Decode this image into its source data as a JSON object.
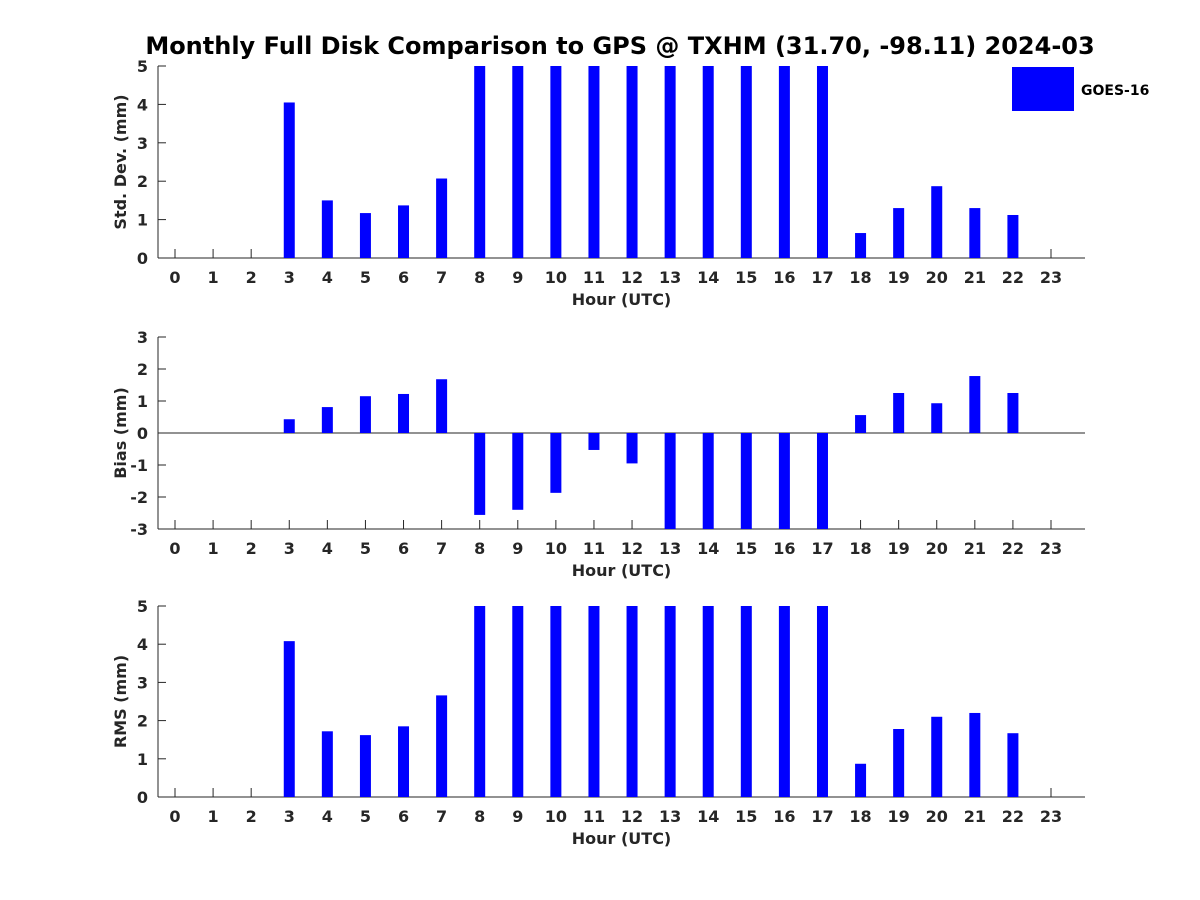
{
  "chart_data": {
    "type": "bar",
    "title": "Monthly Full Disk Comparison to GPS @ TXHM (31.70, -98.11) 2024-03",
    "legend": {
      "entries": [
        "GOES-16"
      ],
      "placement": "top-right",
      "color": "#0000ff"
    },
    "bar_color": "#0000ff",
    "panels": [
      {
        "id": "stddev",
        "ylabel": "Std. Dev. (mm)",
        "xlabel": "Hour (UTC)",
        "ylim": [
          0,
          5
        ],
        "yticks": [
          "0",
          "1",
          "2",
          "3",
          "4",
          "5"
        ],
        "categories": [
          "0",
          "1",
          "2",
          "3",
          "4",
          "5",
          "6",
          "7",
          "8",
          "9",
          "10",
          "11",
          "12",
          "13",
          "14",
          "15",
          "16",
          "17",
          "18",
          "19",
          "20",
          "21",
          "22",
          "23"
        ],
        "series": [
          {
            "name": "GOES-16",
            "values": [
              null,
              null,
              null,
              4.05,
              1.5,
              1.17,
              1.37,
              2.07,
              5,
              5,
              5,
              5,
              5,
              5,
              5,
              5,
              5,
              5,
              0.65,
              1.3,
              1.87,
              1.3,
              1.12,
              null
            ]
          }
        ]
      },
      {
        "id": "bias",
        "ylabel": "Bias (mm)",
        "xlabel": "Hour (UTC)",
        "ylim": [
          -3,
          3
        ],
        "yticks": [
          "-3",
          "-2",
          "-1",
          "0",
          "1",
          "2",
          "3"
        ],
        "zero_line": true,
        "categories": [
          "0",
          "1",
          "2",
          "3",
          "4",
          "5",
          "6",
          "7",
          "8",
          "9",
          "10",
          "11",
          "12",
          "13",
          "14",
          "15",
          "16",
          "17",
          "18",
          "19",
          "20",
          "21",
          "22",
          "23"
        ],
        "series": [
          {
            "name": "GOES-16",
            "values": [
              null,
              null,
              null,
              0.43,
              0.81,
              1.15,
              1.22,
              1.68,
              -2.56,
              -2.4,
              -1.87,
              -0.53,
              -0.95,
              -3,
              -3,
              -3,
              -3,
              -3,
              0.56,
              1.25,
              0.93,
              1.78,
              1.25,
              null
            ]
          }
        ]
      },
      {
        "id": "rms",
        "ylabel": "RMS (mm)",
        "xlabel": "Hour (UTC)",
        "ylim": [
          0,
          5
        ],
        "yticks": [
          "0",
          "1",
          "2",
          "3",
          "4",
          "5"
        ],
        "categories": [
          "0",
          "1",
          "2",
          "3",
          "4",
          "5",
          "6",
          "7",
          "8",
          "9",
          "10",
          "11",
          "12",
          "13",
          "14",
          "15",
          "16",
          "17",
          "18",
          "19",
          "20",
          "21",
          "22",
          "23"
        ],
        "series": [
          {
            "name": "GOES-16",
            "values": [
              null,
              null,
              null,
              4.08,
              1.72,
              1.62,
              1.85,
              2.66,
              5,
              5,
              5,
              5,
              5,
              5,
              5,
              5,
              5,
              5,
              0.87,
              1.78,
              2.1,
              2.2,
              1.67,
              null
            ]
          }
        ]
      }
    ]
  }
}
